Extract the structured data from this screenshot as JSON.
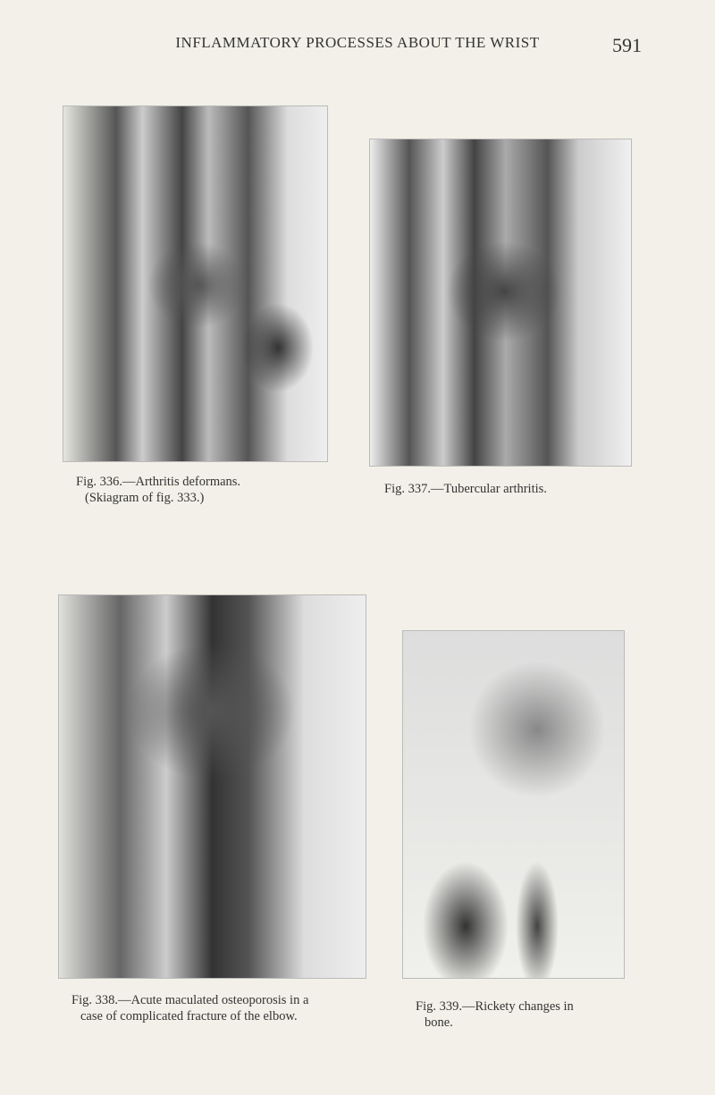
{
  "header": {
    "title": "INFLAMMATORY PROCESSES ABOUT THE WRIST",
    "page_number": "591"
  },
  "figures": [
    {
      "caption": [
        "Fig. 336.—Arthritis deformans.",
        "(Skiagram of fig. 333.)"
      ]
    },
    {
      "caption": [
        "Fig. 337.—Tubercular arthritis."
      ]
    },
    {
      "caption": [
        "Fig. 338.—Acute maculated osteoporosis in a",
        "case of complicated fracture of the elbow."
      ]
    },
    {
      "caption": [
        "Fig. 339.—Rickety changes in",
        "bone."
      ]
    }
  ]
}
